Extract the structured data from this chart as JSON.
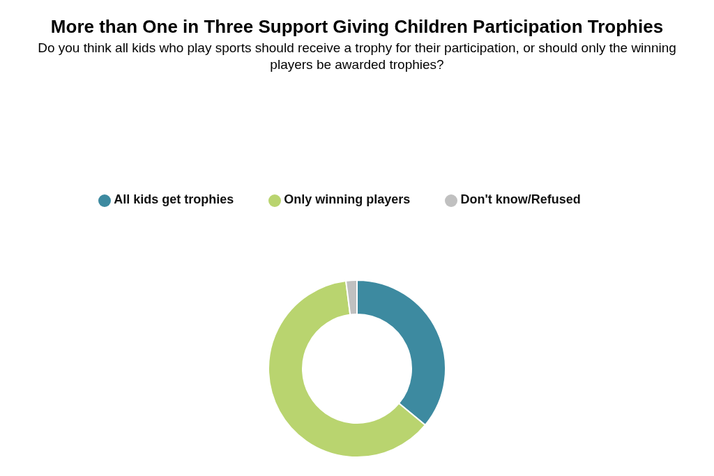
{
  "chart_data": {
    "type": "donut",
    "title": "More than One in Three Support Giving Children Participation Trophies",
    "subtitle": "Do you think all kids who play sports should receive a trophy for their participation, or should only the winning players be awarded trophies?",
    "categories": [
      "All kids get trophies",
      "Only winning players",
      "Don't know/Refused"
    ],
    "values": [
      36,
      62,
      2
    ],
    "colors": [
      "#3d8aa0",
      "#b9d46f",
      "#c0c0c0"
    ],
    "legend": "top"
  }
}
